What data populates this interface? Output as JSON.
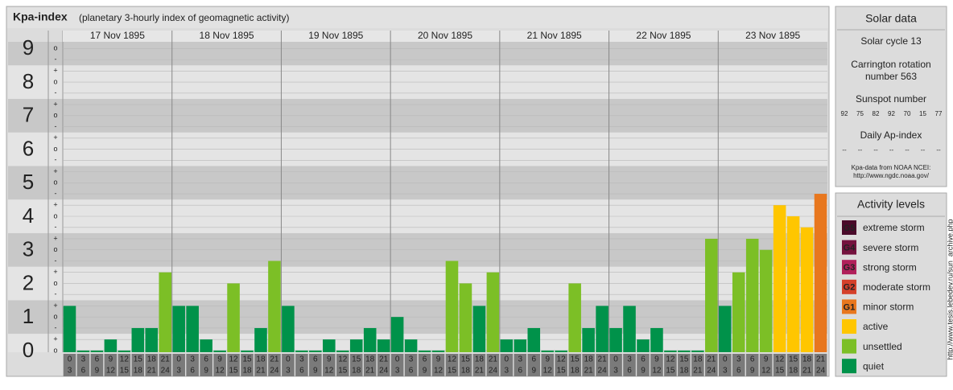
{
  "chart_data": {
    "type": "bar",
    "title": "Kpa-index",
    "subtitle": "(planetary 3-hourly index of geomagnetic activity)",
    "categories": [
      "17 Nov 1895",
      "18 Nov 1895",
      "19 Nov 1895",
      "20 Nov 1895",
      "21 Nov 1895",
      "22 Nov 1895",
      "23 Nov 1895"
    ],
    "hours": [
      "0",
      "3",
      "6",
      "9",
      "12",
      "15",
      "18",
      "21",
      "24"
    ],
    "values": [
      [
        1.33,
        0,
        0,
        0.33,
        0,
        0.67,
        0.67,
        2.33
      ],
      [
        1.33,
        1.33,
        0.33,
        0,
        2,
        0,
        0.67,
        2.67
      ],
      [
        1.33,
        0,
        0,
        0.33,
        0,
        0.33,
        0.67,
        0.33
      ],
      [
        1,
        0.33,
        0,
        0,
        2.67,
        2,
        1.33,
        2.33
      ],
      [
        0.33,
        0.33,
        0.67,
        0,
        0,
        2,
        0.67,
        1.33
      ],
      [
        0.67,
        1.33,
        0.33,
        0.67,
        0,
        0,
        0,
        3.33
      ],
      [
        1.33,
        2.33,
        3.33,
        3,
        4.33,
        4,
        3.67,
        4.67
      ]
    ],
    "colors": [
      [
        "#00924a",
        "#00924a",
        "#00924a",
        "#00924a",
        "#00924a",
        "#00924a",
        "#00924a",
        "#7cbf26"
      ],
      [
        "#00924a",
        "#00924a",
        "#00924a",
        "#00924a",
        "#7cbf26",
        "#00924a",
        "#00924a",
        "#7cbf26"
      ],
      [
        "#00924a",
        "#00924a",
        "#00924a",
        "#00924a",
        "#00924a",
        "#00924a",
        "#00924a",
        "#00924a"
      ],
      [
        "#00924a",
        "#00924a",
        "#00924a",
        "#00924a",
        "#7cbf26",
        "#7cbf26",
        "#00924a",
        "#7cbf26"
      ],
      [
        "#00924a",
        "#00924a",
        "#00924a",
        "#00924a",
        "#00924a",
        "#7cbf26",
        "#00924a",
        "#00924a"
      ],
      [
        "#00924a",
        "#00924a",
        "#00924a",
        "#00924a",
        "#00924a",
        "#00924a",
        "#00924a",
        "#7cbf26"
      ],
      [
        "#00924a",
        "#7cbf26",
        "#7cbf26",
        "#7cbf26",
        "#ffc600",
        "#ffc600",
        "#ffc600",
        "#e8771e"
      ]
    ],
    "ylim": [
      -0.05,
      9.2
    ],
    "yticks": [
      0,
      1,
      2,
      3,
      4,
      5,
      6,
      7,
      8,
      9
    ],
    "yminor_ticks": [
      {
        "value": 0,
        "label": "o"
      },
      {
        "value": 0.33,
        "label": "+"
      },
      {
        "value": 0.67,
        "label": "-"
      },
      {
        "value": 1,
        "label": "o"
      },
      {
        "value": 1.33,
        "label": "+"
      },
      {
        "value": 1.67,
        "label": "-"
      },
      {
        "value": 2,
        "label": "o"
      },
      {
        "value": 2.33,
        "label": "+"
      },
      {
        "value": 2.67,
        "label": "-"
      },
      {
        "value": 3,
        "label": "o"
      },
      {
        "value": 3.33,
        "label": "+"
      },
      {
        "value": 3.67,
        "label": "-"
      },
      {
        "value": 4,
        "label": "o"
      },
      {
        "value": 4.33,
        "label": "+"
      },
      {
        "value": 4.67,
        "label": "-"
      },
      {
        "value": 5,
        "label": "o"
      },
      {
        "value": 5.33,
        "label": "+"
      },
      {
        "value": 5.67,
        "label": "-"
      },
      {
        "value": 6,
        "label": "o"
      },
      {
        "value": 6.33,
        "label": "+"
      },
      {
        "value": 6.67,
        "label": "-"
      },
      {
        "value": 7,
        "label": "o"
      },
      {
        "value": 7.33,
        "label": "+"
      },
      {
        "value": 7.67,
        "label": "-"
      },
      {
        "value": 8,
        "label": "o"
      },
      {
        "value": 8.33,
        "label": "+"
      },
      {
        "value": 8.67,
        "label": "-"
      },
      {
        "value": 9,
        "label": "o"
      }
    ],
    "grid": true
  },
  "solar_data": {
    "title": "Solar data",
    "cycle": "Solar cycle 13",
    "rotation": [
      "Carrington rotation",
      "number 563"
    ],
    "sunspot_title": "Sunspot number",
    "sunspot_values": [
      92,
      75,
      82,
      92,
      70,
      15,
      77
    ],
    "ap_title": "Daily Ap-index",
    "ap_values": [
      "--",
      "--",
      "--",
      "--",
      "--",
      "--",
      "--"
    ],
    "source": [
      "Kpa-data from NOAA NCEI:",
      "http://www.ngdc.noaa.gov/"
    ]
  },
  "activity_levels": {
    "title": "Activity levels",
    "items": [
      {
        "code": "G5",
        "label": "extreme storm",
        "color": "#4a0a2a"
      },
      {
        "code": "G4",
        "label": "severe storm",
        "color": "#74123e"
      },
      {
        "code": "G3",
        "label": "strong storm",
        "color": "#b01f5a"
      },
      {
        "code": "G2",
        "label": "moderate storm",
        "color": "#d4402a"
      },
      {
        "code": "G1",
        "label": "minor storm",
        "color": "#e8771e"
      },
      {
        "label": "active",
        "color": "#ffc600"
      },
      {
        "label": "unsettled",
        "color": "#7cbf26"
      },
      {
        "label": "quiet",
        "color": "#00924a"
      }
    ]
  },
  "watermark": "http://www.tesis.lebedev.ru/sun_archive.php"
}
